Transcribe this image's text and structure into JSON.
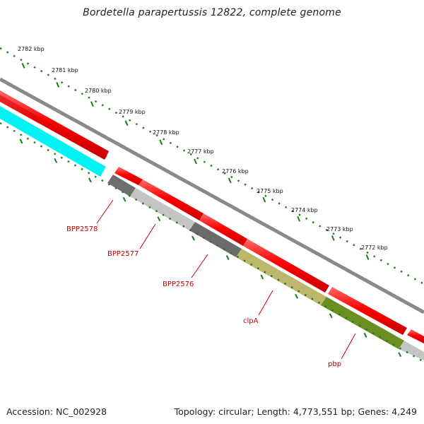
{
  "title": "Bordetella parapertussis 12822, complete genome",
  "footer": {
    "accession": "Accession: NC_002928",
    "stats": "Topology: circular; Length: 4,773,551 bp; Genes: 4,249"
  },
  "scale_labels": [
    "2782 kbp",
    "2781 kbp",
    "2780 kbp",
    "2779 kbp",
    "2778 kbp",
    "2777 kbp",
    "2776 kbp",
    "2775 kbp",
    "2774 kbp",
    "2773 kbp",
    "2772 kbp"
  ],
  "gene_labels": [
    "BPP2578",
    "BPP2577",
    "BPP2576",
    "clpA",
    "pbp"
  ],
  "colors": {
    "backbone": "#808080",
    "cds_forward": "#ff0000",
    "cds_reverse_cyan": "#00ffff",
    "gene_dark_gray": "#6e6e6e",
    "gene_light_gray": "#c8c8c8",
    "gene_khaki": "#bdb76b",
    "gene_olive": "#6b8e23",
    "ticks": "#1a7a1a",
    "label_red": "#c00000"
  }
}
